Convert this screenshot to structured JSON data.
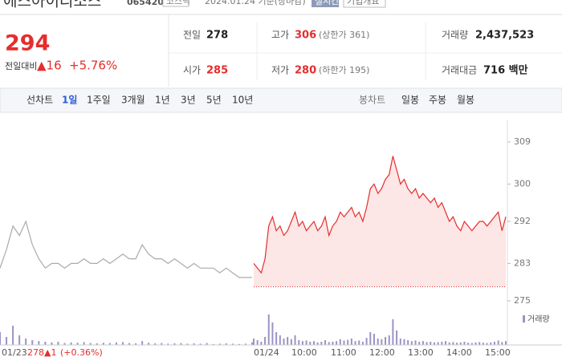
{
  "header": {
    "title": "에스아이리소스",
    "code": "065420",
    "market": "코스닥",
    "date": "2024.01.24 기준(장마감)",
    "realtime": "실시간",
    "company": "기업개요"
  },
  "price": {
    "now": 294,
    "change_label": "전일대비",
    "change": "▲16",
    "rate": "+5.76%"
  },
  "stats": [
    [
      {
        "label": "전일",
        "value": 278
      },
      {
        "label": "고가",
        "value": 306,
        "note": "(상한가 361)"
      },
      {
        "label": "거래량",
        "value": "2,437,523"
      }
    ],
    [
      {
        "label": "시가",
        "value": 285
      },
      {
        "label": "저가",
        "value": 280,
        "note": "(하한가 195)"
      },
      {
        "label": "거래대금",
        "value": "716 백만"
      }
    ]
  ],
  "tabs": {
    "line": "선차트",
    "periods": [
      "1일",
      "1주일",
      "3개월",
      "1년",
      "3년",
      "5년",
      "10년"
    ],
    "candle": "봉차트",
    "candles": [
      "일봉",
      "주봉",
      "월봉"
    ]
  },
  "chart_data": {
    "type": "line",
    "ylim": [
      275,
      309
    ],
    "yticks": [
      275,
      283,
      292,
      300,
      309
    ],
    "x_labels": [
      "01/23",
      "01/24",
      "10:00",
      "11:00",
      "12:00",
      "13:00",
      "14:00",
      "15:00"
    ],
    "prev_info": {
      "date": "01/23",
      "close": "278",
      "change": "▲1",
      "rate": "(+0.36%)"
    },
    "series": [
      {
        "color": "#aaaaaa",
        "values": [
          282,
          286,
          291,
          289,
          292,
          287,
          284,
          282,
          283,
          283,
          282,
          283,
          283,
          284,
          283,
          283,
          284,
          283,
          284,
          285,
          284,
          284,
          287,
          285,
          284,
          284,
          283,
          284,
          283,
          282,
          283,
          282,
          282,
          282,
          281,
          282,
          281,
          280,
          280,
          280
        ]
      },
      {
        "color": "#e52d2d",
        "values": [
          283,
          282,
          281,
          284,
          291,
          293,
          290,
          291,
          289,
          290,
          292,
          294,
          291,
          292,
          290,
          291,
          292,
          290,
          291,
          293,
          289,
          291,
          292,
          294,
          293,
          294,
          295,
          293,
          294,
          292,
          295,
          299,
          300,
          298,
          299,
          301,
          302,
          306,
          303,
          300,
          301,
          299,
          298,
          299,
          297,
          298,
          297,
          296,
          297,
          295,
          296,
          294,
          292,
          293,
          291,
          290,
          292,
          291,
          290,
          291,
          292,
          292,
          291,
          292,
          293,
          294,
          290,
          293
        ]
      }
    ],
    "volume": {
      "name": "거래량",
      "color": "#9a94c4",
      "values": [
        [
          40,
          25,
          60,
          30,
          20,
          15,
          12,
          10,
          8,
          10,
          6,
          8,
          7,
          9,
          6,
          5,
          7,
          6,
          8,
          9,
          6,
          5,
          12,
          7,
          5,
          6,
          4,
          5,
          6,
          4,
          5,
          4,
          6,
          3,
          4,
          5,
          4,
          3,
          4,
          8
        ],
        [
          20,
          15,
          10,
          25,
          95,
          70,
          40,
          30,
          20,
          25,
          18,
          30,
          15,
          12,
          14,
          10,
          12,
          8,
          10,
          15,
          9,
          10,
          12,
          18,
          14,
          16,
          20,
          12,
          14,
          10,
          22,
          40,
          35,
          20,
          18,
          25,
          30,
          80,
          45,
          20,
          18,
          15,
          12,
          14,
          10,
          12,
          9,
          10,
          8,
          9,
          10,
          12,
          8,
          9,
          7,
          8,
          10,
          7,
          6,
          8,
          9,
          7,
          6,
          8,
          10,
          14,
          9,
          12
        ]
      ]
    }
  }
}
